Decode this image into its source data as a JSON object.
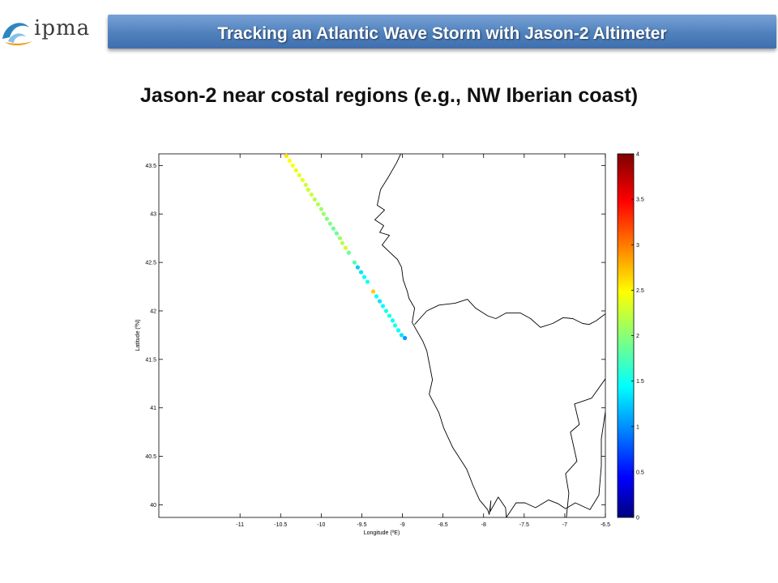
{
  "header": {
    "logo_text": "ipma",
    "banner_title": "Tracking an Atlantic Wave Storm with Jason-2 Altimeter"
  },
  "slide": {
    "subtitle": "Jason-2 near costal regions (e.g., NW Iberian coast)"
  },
  "colors": {
    "banner": "#4f81bd",
    "logo_blue": "#2e86c1",
    "logo_orange": "#f39c12"
  },
  "chart_data": {
    "type": "scatter",
    "title": "",
    "xlabel": "Longitude (ºE)",
    "ylabel": "Latitude (ºN)",
    "xlim": [
      -12.0,
      -6.5
    ],
    "ylim": [
      39.87,
      43.62
    ],
    "xticks": [
      -11,
      -10.5,
      -10,
      -9.5,
      -9,
      -8.5,
      -8,
      -7.5,
      -7,
      -6.5
    ],
    "xtick_labels": [
      "-11",
      "-10.5",
      "-10",
      "-9.5",
      "-9",
      "-8.5",
      "-8",
      "-7.5",
      "-7",
      "-6.5"
    ],
    "yticks": [
      40,
      40.5,
      41,
      41.5,
      42,
      42.5,
      43,
      43.5
    ],
    "ytick_labels": [
      "40",
      "40.5",
      "41",
      "41.5",
      "42",
      "42.5",
      "43",
      "43.5"
    ],
    "colorbar": {
      "range": [
        0,
        4
      ],
      "ticks": [
        0,
        0.5,
        1,
        1.5,
        2,
        2.5,
        3,
        3.5,
        4
      ],
      "tick_labels": [
        "0",
        "0.5",
        "1",
        "1.5",
        "2",
        "2.5",
        "3",
        "3.5",
        "4"
      ],
      "colormap": "jet"
    },
    "track": {
      "lon": [
        -10.43,
        -10.39,
        -10.35,
        -10.31,
        -10.27,
        -10.23,
        -10.19,
        -10.16,
        -10.12,
        -10.08,
        -10.04,
        -10.0,
        -9.97,
        -9.93,
        -9.89,
        -9.85,
        -9.81,
        -9.77,
        -9.74,
        -9.7,
        -9.66,
        -9.59,
        -9.55,
        -9.51,
        -9.47,
        -9.43,
        -9.36,
        -9.32,
        -9.28,
        -9.24,
        -9.2,
        -9.16,
        -9.12,
        -9.09,
        -9.05,
        -9.01,
        -8.97
      ],
      "lat": [
        43.6,
        43.55,
        43.5,
        43.45,
        43.4,
        43.35,
        43.3,
        43.25,
        43.2,
        43.15,
        43.1,
        43.05,
        43.0,
        42.95,
        42.9,
        42.85,
        42.8,
        42.75,
        42.7,
        42.65,
        42.6,
        42.5,
        42.45,
        42.4,
        42.35,
        42.3,
        42.2,
        42.15,
        42.1,
        42.05,
        42.0,
        41.95,
        41.9,
        41.85,
        41.8,
        41.75,
        41.72
      ],
      "swh": [
        2.6,
        2.5,
        2.5,
        2.4,
        2.4,
        2.4,
        2.3,
        2.3,
        2.3,
        2.2,
        2.2,
        2.1,
        2.1,
        2.0,
        2.0,
        1.9,
        1.9,
        2.1,
        2.2,
        2.3,
        1.9,
        1.8,
        1.3,
        1.4,
        1.5,
        1.6,
        2.7,
        1.5,
        1.4,
        1.5,
        1.6,
        1.6,
        1.5,
        1.6,
        1.5,
        1.4,
        1.1
      ]
    },
    "coastline": {
      "lon": [
        -9.02,
        -9.07,
        -9.18,
        -9.27,
        -9.31,
        -9.22,
        -9.34,
        -9.23,
        -9.28,
        -9.16,
        -9.25,
        -9.15,
        -9.06,
        -9.01,
        -8.99,
        -8.94,
        -8.92,
        -8.85,
        -8.88,
        -8.75,
        -8.7,
        -8.63,
        -8.67,
        -8.55,
        -8.49,
        -8.38,
        -8.21,
        -8.13,
        -8.05,
        -7.95,
        -7.93,
        -7.91,
        -7.92,
        -7.82,
        -7.73,
        -7.72,
        -7.6,
        -7.49,
        -7.36,
        -7.2,
        -7.08,
        -6.99,
        -6.87,
        -6.69,
        -6.58,
        -6.55,
        -6.55,
        -6.5
      ],
      "lat": [
        43.62,
        43.53,
        43.37,
        43.25,
        43.09,
        43.04,
        42.94,
        42.88,
        42.81,
        42.78,
        42.68,
        42.6,
        42.53,
        42.45,
        42.32,
        42.2,
        42.13,
        42.03,
        41.88,
        41.69,
        41.59,
        41.29,
        41.14,
        40.95,
        40.79,
        40.59,
        40.37,
        40.2,
        40.05,
        39.95,
        39.9,
        40.04,
        39.93,
        40.08,
        39.97,
        39.87,
        40.02,
        40.02,
        39.97,
        40.05,
        40.01,
        39.96,
        40.02,
        39.95,
        40.1,
        40.4,
        40.68,
        40.96
      ]
    },
    "border": {
      "lon": [
        -8.85,
        -8.7,
        -8.55,
        -8.35,
        -8.2,
        -8.1,
        -7.95,
        -7.85,
        -7.72,
        -7.55,
        -7.42,
        -7.3,
        -7.15,
        -7.02,
        -6.9,
        -6.78,
        -6.7,
        -6.61,
        -6.5
      ],
      "lat": [
        41.86,
        42.0,
        42.06,
        42.08,
        42.12,
        42.03,
        41.95,
        41.92,
        41.98,
        41.98,
        41.92,
        41.83,
        41.87,
        41.93,
        41.92,
        41.87,
        41.86,
        41.9,
        41.97
      ]
    },
    "border_south": {
      "lon": [
        -6.5,
        -6.67,
        -6.88,
        -6.82,
        -6.93,
        -6.85,
        -6.99,
        -6.95,
        -6.98
      ],
      "lat": [
        41.3,
        41.1,
        41.04,
        40.83,
        40.75,
        40.45,
        40.32,
        40.12,
        39.87
      ]
    },
    "grid": false,
    "legend": "colorbar-right"
  }
}
